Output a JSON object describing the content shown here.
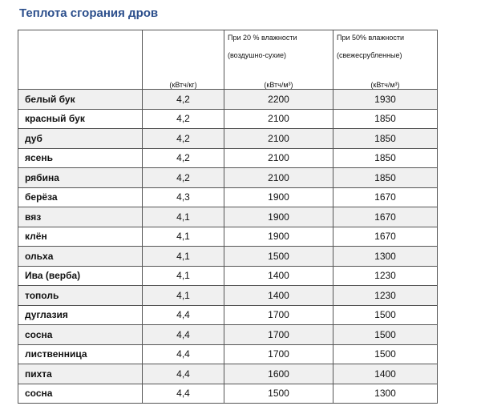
{
  "title": "Теплота сгорания дров",
  "table": {
    "header_notes": [
      [
        "При 20 % влажности",
        "(воздушно-сухие)"
      ],
      [
        "При 50% влажности",
        "(свежесрубленные)"
      ]
    ],
    "units": [
      "(кВтч/кг)",
      "(кВтч/м³)",
      "(кВтч/м³)"
    ],
    "rows": [
      [
        "белый бук",
        "4,2",
        "2200",
        "1930"
      ],
      [
        "красный бук",
        "4,2",
        "2100",
        "1850"
      ],
      [
        "дуб",
        "4,2",
        "2100",
        "1850"
      ],
      [
        "ясень",
        "4,2",
        "2100",
        "1850"
      ],
      [
        "рябина",
        "4,2",
        "2100",
        "1850"
      ],
      [
        "берёза",
        "4,3",
        "1900",
        "1670"
      ],
      [
        "вяз",
        "4,1",
        "1900",
        "1670"
      ],
      [
        "клён",
        "4,1",
        "1900",
        "1670"
      ],
      [
        "ольха",
        "4,1",
        "1500",
        "1300"
      ],
      [
        "Ива (верба)",
        "4,1",
        "1400",
        "1230"
      ],
      [
        "тополь",
        "4,1",
        "1400",
        "1230"
      ],
      [
        "дуглазия",
        "4,4",
        "1700",
        "1500"
      ],
      [
        "сосна",
        "4,4",
        "1700",
        "1500"
      ],
      [
        "лиственница",
        "4,4",
        "1700",
        "1500"
      ],
      [
        "пихта",
        "4,4",
        "1600",
        "1400"
      ],
      [
        "сосна",
        "4,4",
        "1500",
        "1300"
      ]
    ]
  }
}
